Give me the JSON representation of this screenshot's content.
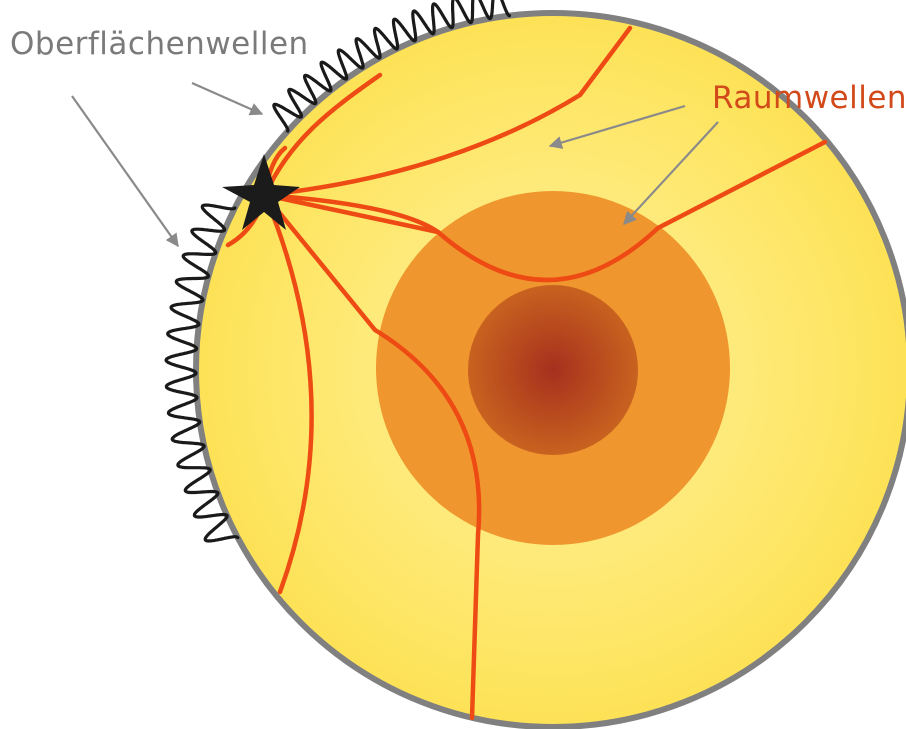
{
  "labels": {
    "surface_waves": "Oberflächenwellen",
    "body_waves": "Raumwellen"
  },
  "colors": {
    "surface_label": "#7a7a7a",
    "body_label": "#d24a1a",
    "wave_ray": "#ee4a14",
    "surface_wave": "#1a1a1a",
    "outline": "#808080",
    "arrow": "#8a8a8a",
    "mantle_center": "#fff3a0",
    "mantle_edge": "#fde256",
    "outer_core": "#f0962e",
    "inner_core_center": "#a6301e",
    "inner_core_edge": "#c8621f",
    "epicenter": "#1b1b1b"
  },
  "icons": {
    "epicenter": "star-icon"
  }
}
